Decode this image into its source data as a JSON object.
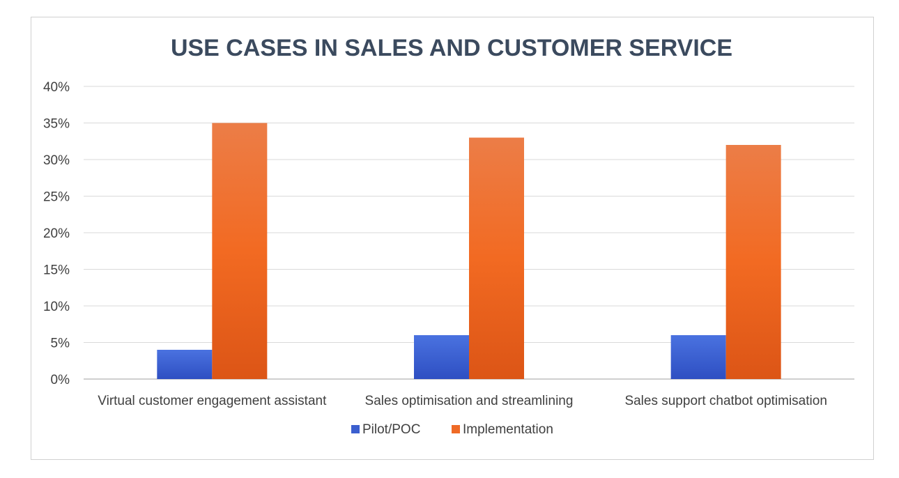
{
  "chart_data": {
    "type": "bar",
    "title": "USE CASES IN SALES AND CUSTOMER SERVICE",
    "categories": [
      "Virtual customer engagement assistant",
      "Sales optimisation and streamlining",
      "Sales support chatbot optimisation"
    ],
    "series": [
      {
        "name": "Pilot/POC",
        "values": [
          4,
          6,
          6
        ],
        "color": "#3b5fcf"
      },
      {
        "name": "Implementation",
        "values": [
          35,
          33,
          32
        ],
        "color": "#ef6a26"
      }
    ],
    "ylim": [
      0,
      40
    ],
    "yticks": [
      "0%",
      "5%",
      "10%",
      "15%",
      "20%",
      "25%",
      "30%",
      "35%",
      "40%"
    ],
    "xlabel": "",
    "ylabel": "",
    "legend": "bottom",
    "grid": true
  }
}
